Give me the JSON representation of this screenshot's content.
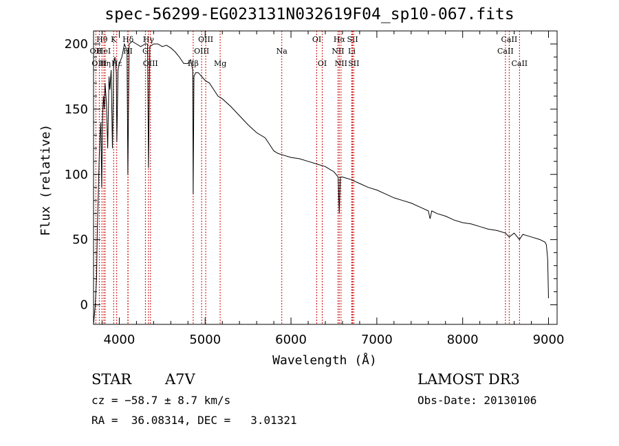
{
  "chart_data": {
    "type": "line",
    "title": "spec-56299-EG023131N032619F04_sp10-067.fits",
    "xlabel": "Wavelength (Å)",
    "ylabel": "Flux (relative)",
    "xlim": [
      3700,
      9100
    ],
    "ylim": [
      -15,
      210
    ],
    "xticks": [
      4000,
      5000,
      6000,
      7000,
      8000,
      9000
    ],
    "yticks": [
      0,
      50,
      100,
      150,
      200
    ],
    "grid": false,
    "series": [
      {
        "name": "spectrum",
        "x": [
          3700,
          3720,
          3735,
          3745,
          3755,
          3765,
          3775,
          3785,
          3795,
          3805,
          3815,
          3825,
          3835,
          3850,
          3865,
          3880,
          3890,
          3905,
          3920,
          3935,
          3950,
          3965,
          3972,
          3985,
          4000,
          4030,
          4060,
          4090,
          4100,
          4115,
          4150,
          4200,
          4250,
          4300,
          4330,
          4340,
          4355,
          4400,
          4450,
          4500,
          4550,
          4600,
          4650,
          4700,
          4750,
          4800,
          4830,
          4855,
          4861,
          4870,
          4890,
          4920,
          4960,
          5000,
          5050,
          5100,
          5150,
          5200,
          5300,
          5400,
          5500,
          5600,
          5700,
          5750,
          5800,
          5850,
          5900,
          6000,
          6100,
          6200,
          6300,
          6400,
          6500,
          6550,
          6563,
          6575,
          6600,
          6700,
          6800,
          6900,
          7000,
          7100,
          7200,
          7300,
          7400,
          7500,
          7600,
          7620,
          7640,
          7700,
          7800,
          7900,
          8000,
          8100,
          8200,
          8300,
          8400,
          8498,
          8542,
          8600,
          8662,
          8700,
          8800,
          8900,
          8960,
          8975,
          8990,
          9000
        ],
        "values": [
          -15,
          0,
          20,
          60,
          85,
          110,
          130,
          140,
          90,
          145,
          160,
          150,
          170,
          155,
          120,
          175,
          165,
          180,
          120,
          185,
          190,
          178,
          125,
          180,
          185,
          190,
          200,
          195,
          100,
          200,
          202,
          200,
          198,
          200,
          200,
          105,
          198,
          200,
          200,
          198,
          199,
          197,
          194,
          190,
          185,
          185,
          188,
          180,
          85,
          175,
          178,
          178,
          175,
          172,
          170,
          165,
          160,
          158,
          152,
          145,
          138,
          132,
          128,
          123,
          118,
          116,
          115,
          113,
          112,
          110,
          108,
          106,
          102,
          98,
          70,
          98,
          98,
          96,
          93,
          90,
          88,
          85,
          82,
          80,
          78,
          75,
          72,
          66,
          72,
          70,
          68,
          65,
          63,
          62,
          60,
          58,
          57,
          55,
          52,
          55,
          50,
          54,
          52,
          50,
          48,
          46,
          35,
          5
        ]
      }
    ],
    "line_markers": [
      {
        "label": "Hθ",
        "wavelength": 3798,
        "row": 1
      },
      {
        "label": "OII",
        "wavelength": 3727,
        "row": 2
      },
      {
        "label": "HeI",
        "wavelength": 3820,
        "row": 2
      },
      {
        "label": "OIII",
        "wavelength": 3767,
        "row": 3
      },
      {
        "label": "Hη",
        "wavelength": 3835,
        "row": 3
      },
      {
        "label": "K",
        "wavelength": 3934,
        "row": 1
      },
      {
        "label": "Hε",
        "wavelength": 3970,
        "row": 3
      },
      {
        "label": "Hδ",
        "wavelength": 4102,
        "row": 1
      },
      {
        "label": "HI",
        "wavelength": 4100,
        "row": 2
      },
      {
        "label": "G",
        "wavelength": 4304,
        "row": 2
      },
      {
        "label": "Hγ",
        "wavelength": 4340,
        "row": 1
      },
      {
        "label": "OIII",
        "wavelength": 4363,
        "row": 3
      },
      {
        "label": "Hβ",
        "wavelength": 4861,
        "row": 3
      },
      {
        "label": "OIII",
        "wavelength": 4959,
        "row": 2
      },
      {
        "label": "OIII",
        "wavelength": 5007,
        "row": 1
      },
      {
        "label": "Mg",
        "wavelength": 5175,
        "row": 3
      },
      {
        "label": "Na",
        "wavelength": 5893,
        "row": 2
      },
      {
        "label": "OI",
        "wavelength": 6300,
        "row": 1
      },
      {
        "label": "OI",
        "wavelength": 6364,
        "row": 3
      },
      {
        "label": "Hα",
        "wavelength": 6563,
        "row": 1
      },
      {
        "label": "NII",
        "wavelength": 6548,
        "row": 2
      },
      {
        "label": "NII",
        "wavelength": 6583,
        "row": 3
      },
      {
        "label": "SII",
        "wavelength": 6717,
        "row": 1
      },
      {
        "label": "Li",
        "wavelength": 6708,
        "row": 2
      },
      {
        "label": "SII",
        "wavelength": 6731,
        "row": 3
      },
      {
        "label": "CaII",
        "wavelength": 8542,
        "row": 1
      },
      {
        "label": "CaII",
        "wavelength": 8498,
        "row": 2
      },
      {
        "label": "CaII",
        "wavelength": 8662,
        "row": 3
      }
    ]
  },
  "info": {
    "object_class": "STAR",
    "subclass": "A7V",
    "survey": "LAMOST DR3",
    "cz": "cz = −58.7 ± 8.7 km/s",
    "obs_date": "Obs-Date: 20130106",
    "coords": "RA =  36.08314, DEC =   3.01321"
  }
}
